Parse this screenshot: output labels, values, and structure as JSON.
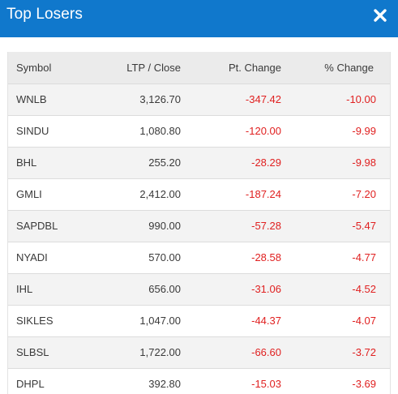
{
  "modal": {
    "title": "Top Losers",
    "close_icon": "close-icon"
  },
  "table": {
    "columns": [
      "Symbol",
      "LTP / Close",
      "Pt. Change",
      "% Change"
    ],
    "rows": [
      {
        "symbol": "WNLB",
        "ltp": "3,126.70",
        "pt_change": "-347.42",
        "pct_change": "-10.00"
      },
      {
        "symbol": "SINDU",
        "ltp": "1,080.80",
        "pt_change": "-120.00",
        "pct_change": "-9.99"
      },
      {
        "symbol": "BHL",
        "ltp": "255.20",
        "pt_change": "-28.29",
        "pct_change": "-9.98"
      },
      {
        "symbol": "GMLI",
        "ltp": "2,412.00",
        "pt_change": "-187.24",
        "pct_change": "-7.20"
      },
      {
        "symbol": "SAPDBL",
        "ltp": "990.00",
        "pt_change": "-57.28",
        "pct_change": "-5.47"
      },
      {
        "symbol": "NYADI",
        "ltp": "570.00",
        "pt_change": "-28.58",
        "pct_change": "-4.77"
      },
      {
        "symbol": "IHL",
        "ltp": "656.00",
        "pt_change": "-31.06",
        "pct_change": "-4.52"
      },
      {
        "symbol": "SIKLES",
        "ltp": "1,047.00",
        "pt_change": "-44.37",
        "pct_change": "-4.07"
      },
      {
        "symbol": "SLBSL",
        "ltp": "1,722.00",
        "pt_change": "-66.60",
        "pct_change": "-3.72"
      },
      {
        "symbol": "DHPL",
        "ltp": "392.80",
        "pt_change": "-15.03",
        "pct_change": "-3.69"
      }
    ]
  },
  "colors": {
    "header_bg": "#1078cc",
    "negative": "#e02020",
    "row_shade": "#f3f3f3",
    "table_header_bg": "#ebebeb"
  }
}
